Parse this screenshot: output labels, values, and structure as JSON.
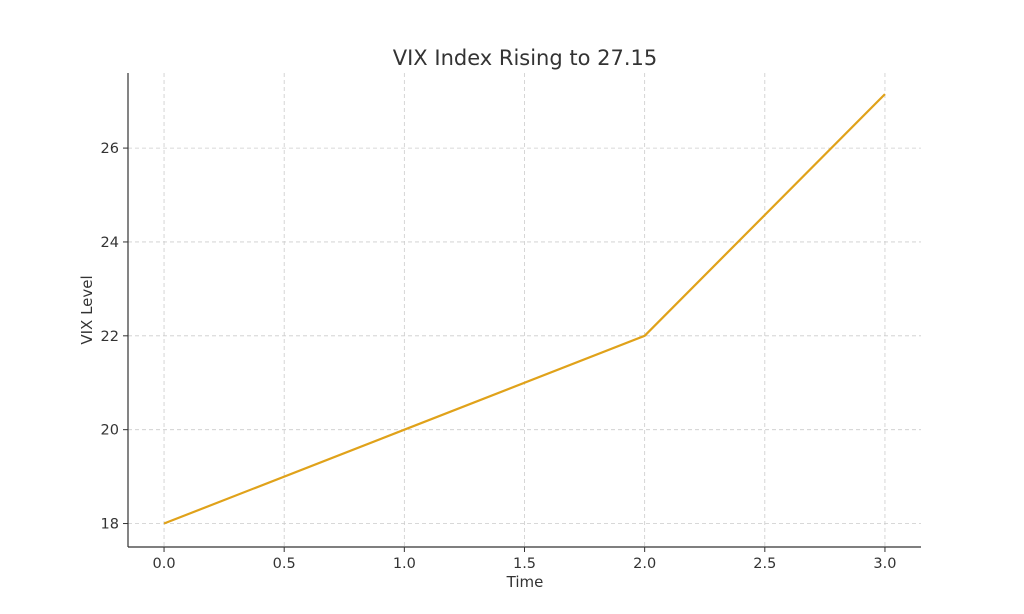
{
  "chart_data": {
    "type": "line",
    "title": "VIX Index Rising to 27.15",
    "xlabel": "Time",
    "ylabel": "VIX Level",
    "xlim": [
      -0.15,
      3.15
    ],
    "ylim": [
      17.5,
      27.6
    ],
    "x_ticks": [
      0.0,
      0.5,
      1.0,
      1.5,
      2.0,
      2.5,
      3.0
    ],
    "x_tick_labels": [
      "0.0",
      "0.5",
      "1.0",
      "1.5",
      "2.0",
      "2.5",
      "3.0"
    ],
    "y_ticks": [
      18,
      20,
      22,
      24,
      26
    ],
    "y_tick_labels": [
      "18",
      "20",
      "22",
      "24",
      "26"
    ],
    "grid": true,
    "series": [
      {
        "color": "#e0a21a",
        "x": [
          0,
          1,
          2,
          3
        ],
        "y": [
          18,
          20,
          22,
          27.15
        ]
      }
    ]
  }
}
